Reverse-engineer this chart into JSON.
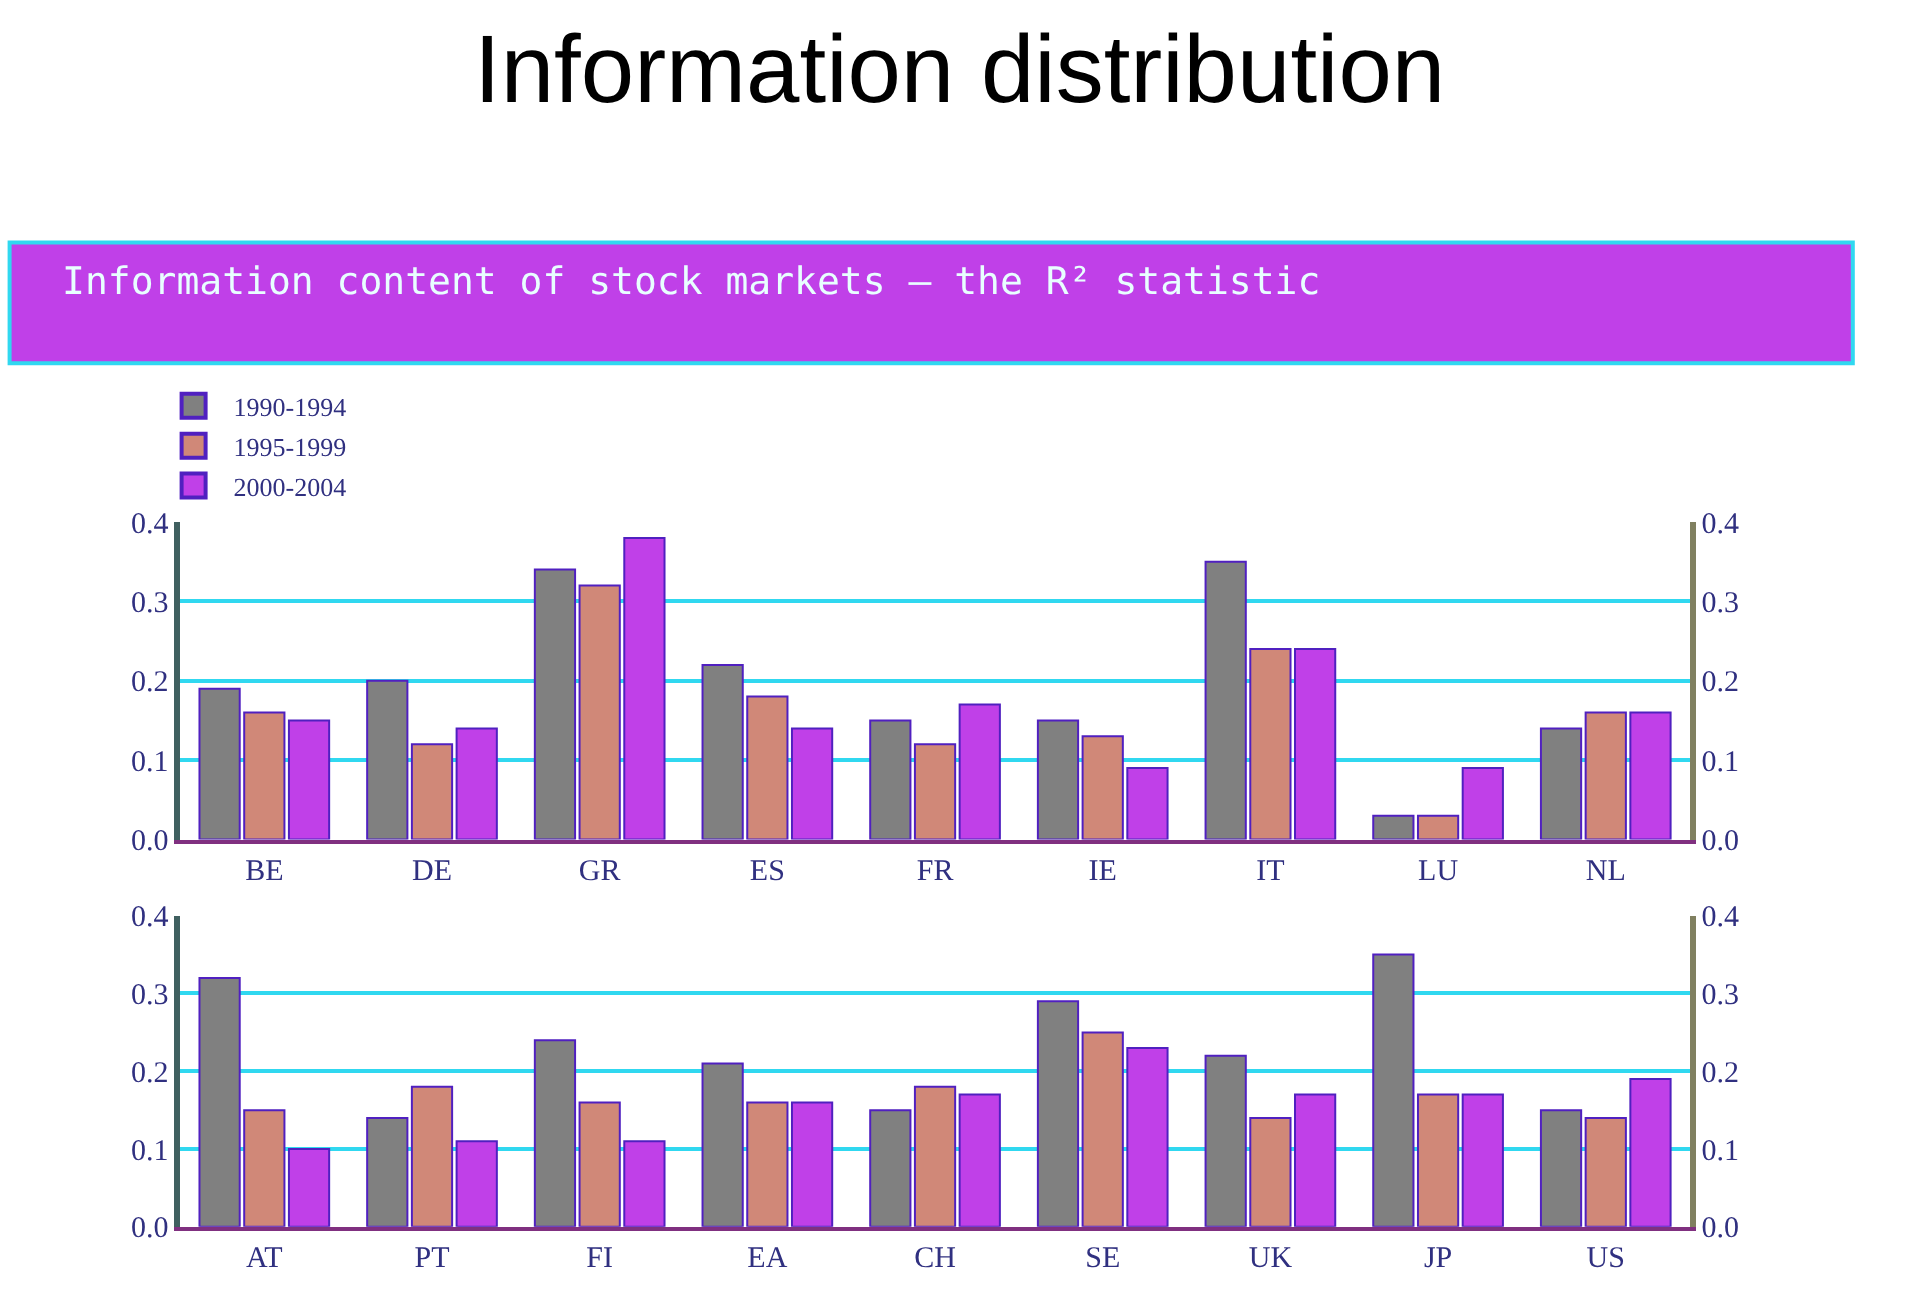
{
  "chart_data": [
    {
      "type": "bar",
      "title": "Information distribution",
      "subtitle": "Information content of stock markets — the R² statistic",
      "categories": [
        "BE",
        "DE",
        "GR",
        "ES",
        "FR",
        "IE",
        "IT",
        "LU",
        "NL"
      ],
      "series": [
        {
          "name": "1990-1994",
          "color": "#808080",
          "values": [
            0.19,
            0.2,
            0.34,
            0.22,
            0.15,
            0.15,
            0.35,
            0.03,
            0.14
          ]
        },
        {
          "name": "1995-1999",
          "color": "#d08878",
          "values": [
            0.16,
            0.12,
            0.32,
            0.18,
            0.12,
            0.13,
            0.24,
            0.03,
            0.16
          ]
        },
        {
          "name": "2000-2004",
          "color": "#c040e8",
          "values": [
            0.15,
            0.14,
            0.38,
            0.14,
            0.17,
            0.09,
            0.24,
            0.09,
            0.16
          ]
        }
      ],
      "ylim": [
        0,
        0.4
      ],
      "yticks": [
        {
          "value": 0,
          "label": "0.0"
        },
        0.1,
        0.2,
        0.3,
        0.4
      ],
      "y2lim": [
        0,
        0.4
      ],
      "y2ticks": [
        {
          "value": 0,
          "label": "0.0"
        },
        0.1,
        0.2,
        0.3,
        0.4
      ],
      "grid": "y",
      "legend": "top left"
    },
    {
      "type": "bar",
      "categories": [
        "AT",
        "PT",
        "FI",
        "EA",
        "CH",
        "SE",
        "UK",
        "JP",
        "US"
      ],
      "series": [
        {
          "color": "#808080",
          "values": [
            0.32,
            0.14,
            0.24,
            0.21,
            0.15,
            0.29,
            0.22,
            0.35,
            0.15
          ]
        },
        {
          "color": "#d08878",
          "values": [
            0.15,
            0.18,
            0.16,
            0.16,
            0.18,
            0.25,
            0.14,
            0.17,
            0.14
          ]
        },
        {
          "color": "#c040e8",
          "values": [
            0.1,
            0.11,
            0.11,
            0.16,
            0.17,
            0.23,
            0.17,
            0.17,
            0.19
          ]
        }
      ],
      "ylim": [
        0,
        0.4
      ],
      "yticks": [
        {
          "value": 0,
          "label": "0.0"
        },
        0.1,
        0.2,
        0.3,
        0.4
      ],
      "y2lim": [
        0,
        0.4
      ],
      "y2ticks": [
        {
          "value": 0,
          "label": "0.0"
        },
        0.1,
        0.2,
        0.3,
        0.4
      ],
      "grid": "y",
      "legend": false
    }
  ]
}
